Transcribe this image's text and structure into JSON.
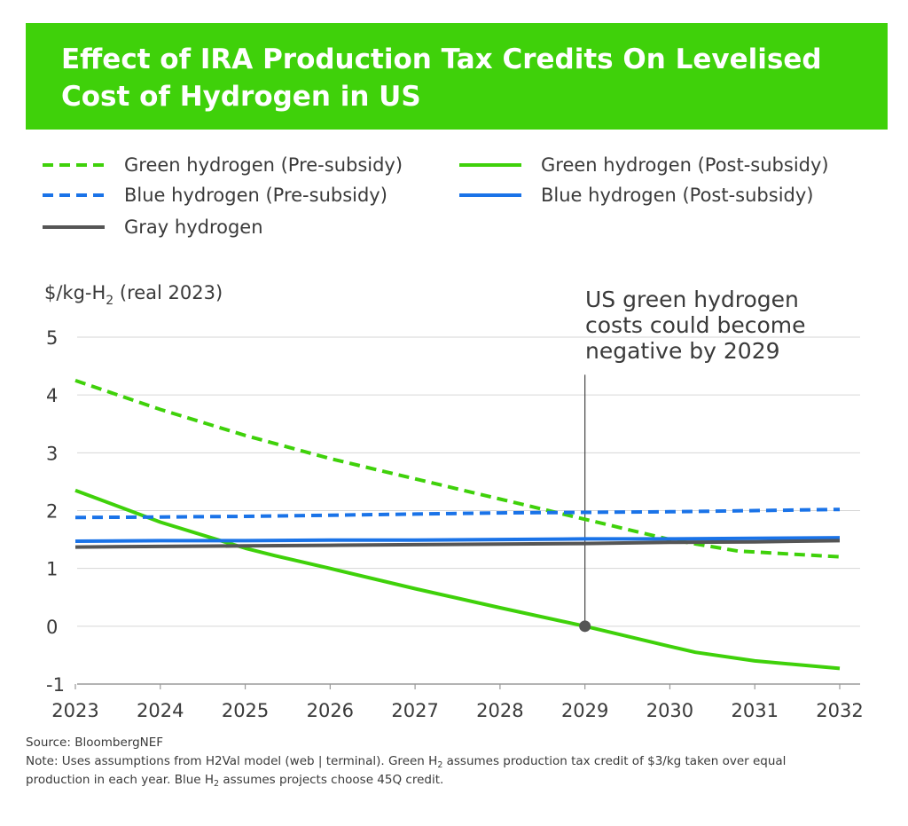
{
  "header": {
    "title": "Effect of IRA Production Tax Credits On Levelised Cost of Hydrogen in US",
    "bg_color": "#3fd10a"
  },
  "legend": [
    {
      "label": "Green hydrogen (Pre-subsidy)",
      "color": "#3fd10a",
      "dashed": true
    },
    {
      "label": "Green hydrogen (Post-subsidy)",
      "color": "#3fd10a",
      "dashed": false
    },
    {
      "label": "Blue hydrogen (Pre-subsidy)",
      "color": "#1a73e8",
      "dashed": true
    },
    {
      "label": "Blue hydrogen (Post-subsidy)",
      "color": "#1a73e8",
      "dashed": false
    },
    {
      "label": "Gray hydrogen",
      "color": "#555555",
      "dashed": false
    }
  ],
  "chart_data": {
    "type": "line",
    "ylabel_prefix": "$/kg-H",
    "ylabel_sub": "2",
    "ylabel_suffix": " (real 2023)",
    "ylim": [
      -1,
      5
    ],
    "yticks": [
      -1,
      0,
      1,
      2,
      3,
      4,
      5
    ],
    "xlim": [
      2023,
      2032
    ],
    "xticks": [
      2023,
      2024,
      2025,
      2026,
      2027,
      2028,
      2029,
      2030,
      2031,
      2032
    ],
    "grid": true,
    "legend_position": "top",
    "series": [
      {
        "name": "Green hydrogen (Pre-subsidy)",
        "color": "#3fd10a",
        "dashed": true,
        "x": [
          2023,
          2024,
          2025,
          2026,
          2027,
          2028,
          2029,
          2030,
          2030.8,
          2032
        ],
        "y": [
          4.25,
          3.75,
          3.3,
          2.9,
          2.55,
          2.2,
          1.85,
          1.5,
          1.3,
          1.2
        ]
      },
      {
        "name": "Green hydrogen (Post-subsidy)",
        "color": "#3fd10a",
        "dashed": false,
        "x": [
          2023,
          2024,
          2025,
          2025.35,
          2026,
          2027,
          2028,
          2029,
          2030,
          2030.3,
          2031,
          2032
        ],
        "y": [
          2.35,
          1.8,
          1.35,
          1.22,
          1.0,
          0.65,
          0.32,
          0.0,
          -0.35,
          -0.45,
          -0.6,
          -0.73
        ]
      },
      {
        "name": "Blue hydrogen (Pre-subsidy)",
        "color": "#1a73e8",
        "dashed": true,
        "x": [
          2023,
          2024,
          2025,
          2026,
          2027,
          2028,
          2029,
          2030,
          2031,
          2032
        ],
        "y": [
          1.88,
          1.89,
          1.9,
          1.92,
          1.94,
          1.96,
          1.97,
          1.98,
          2.0,
          2.02
        ]
      },
      {
        "name": "Blue hydrogen (Post-subsidy)",
        "color": "#1a73e8",
        "dashed": false,
        "x": [
          2023,
          2024,
          2025,
          2026,
          2027,
          2028,
          2029,
          2030,
          2031,
          2032
        ],
        "y": [
          1.47,
          1.48,
          1.48,
          1.49,
          1.49,
          1.5,
          1.51,
          1.51,
          1.52,
          1.53
        ]
      },
      {
        "name": "Gray hydrogen",
        "color": "#555555",
        "dashed": false,
        "x": [
          2023,
          2024,
          2025,
          2026,
          2027,
          2028,
          2029,
          2030,
          2031,
          2032
        ],
        "y": [
          1.37,
          1.38,
          1.39,
          1.4,
          1.41,
          1.42,
          1.43,
          1.45,
          1.46,
          1.48
        ]
      }
    ],
    "annotation": {
      "lines": [
        "US green hydrogen",
        "costs could become",
        "negative by 2029"
      ],
      "x": 2029,
      "marker_y": 0,
      "line_top_y": 4.35
    }
  },
  "footer": {
    "source": "Source: BloombergNEF",
    "note_line1_a": "Note: Uses assumptions from H2Val model (web | terminal). Green H",
    "note_line1_sub": "2",
    "note_line1_b": " assumes production tax credit of $3/kg taken over equal",
    "note_line2": "production in each year. Blue H",
    "note_line2_sub": "2",
    "note_line2_b": " assumes projects choose 45Q credit."
  }
}
